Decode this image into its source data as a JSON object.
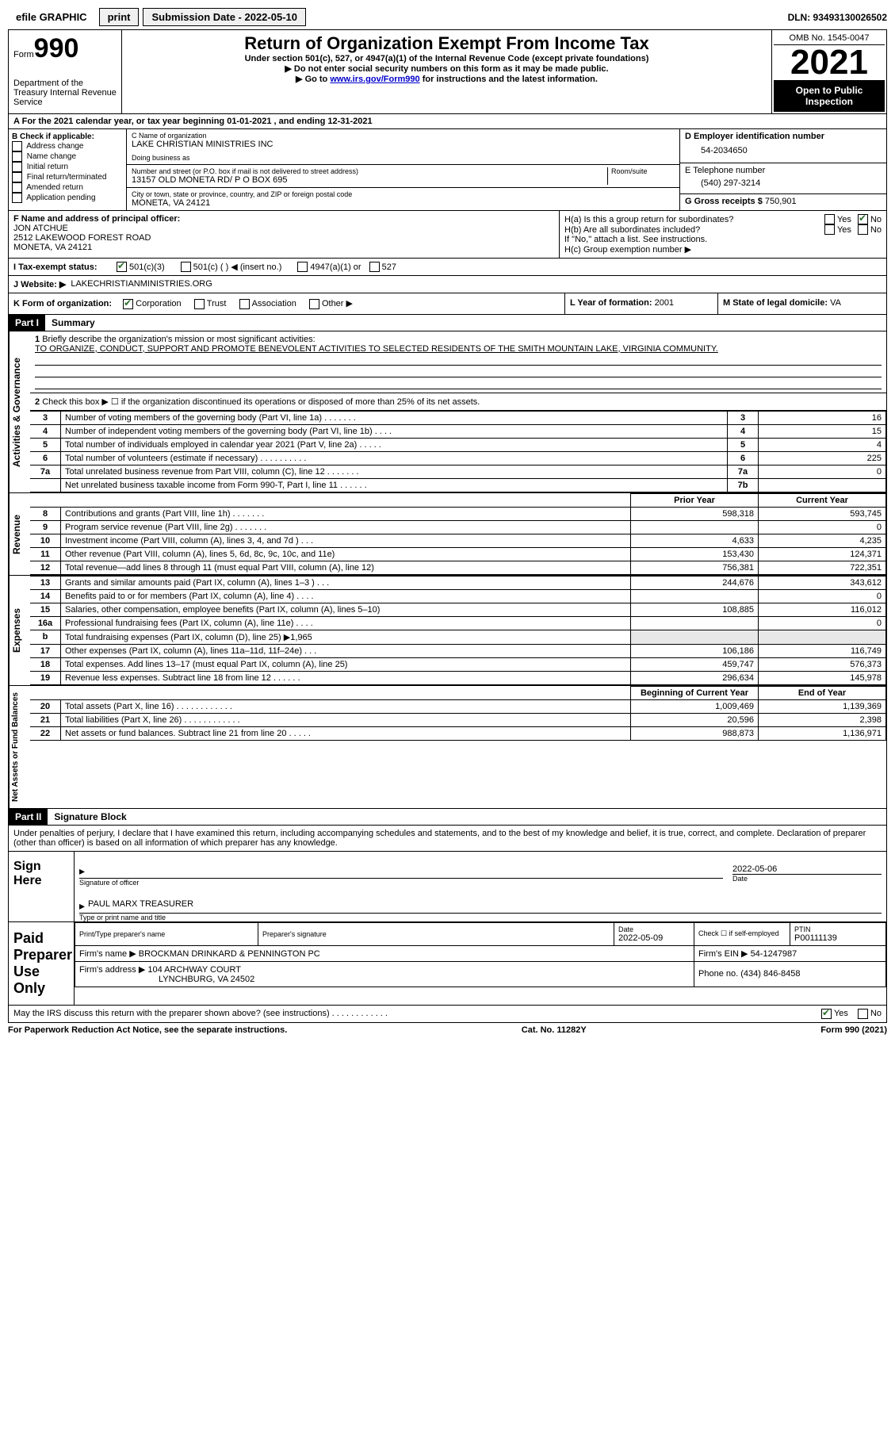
{
  "topbar": {
    "efile_label": "efile GRAPHIC",
    "print_label": "print",
    "submission_label": "Submission Date - 2022-05-10",
    "dln": "DLN: 93493130026502"
  },
  "header": {
    "form_word": "Form",
    "form_num": "990",
    "dept": "Department of the Treasury\nInternal Revenue Service",
    "title": "Return of Organization Exempt From Income Tax",
    "sub1": "Under section 501(c), 527, or 4947(a)(1) of the Internal Revenue Code (except private foundations)",
    "sub2": "▶ Do not enter social security numbers on this form as it may be made public.",
    "sub3_pre": "▶ Go to ",
    "sub3_link": "www.irs.gov/Form990",
    "sub3_post": " for instructions and the latest information.",
    "omb": "OMB No. 1545-0047",
    "year": "2021",
    "open": "Open to Public Inspection"
  },
  "lineA": "For the 2021 calendar year, or tax year beginning 01-01-2021   , and ending 12-31-2021",
  "boxB": {
    "label": "B Check if applicable:",
    "opts": [
      "Address change",
      "Name change",
      "Initial return",
      "Final return/terminated",
      "Amended return",
      "Application pending"
    ]
  },
  "boxC": {
    "name_label": "C Name of organization",
    "name": "LAKE CHRISTIAN MINISTRIES INC",
    "dba_label": "Doing business as",
    "dba": "",
    "street_label": "Number and street (or P.O. box if mail is not delivered to street address)",
    "room_label": "Room/suite",
    "street": "13157 OLD MONETA RD/ P O BOX 695",
    "city_label": "City or town, state or province, country, and ZIP or foreign postal code",
    "city": "MONETA, VA  24121"
  },
  "boxD": {
    "ein_label": "D Employer identification number",
    "ein": "54-2034650",
    "phone_label": "E Telephone number",
    "phone": "(540) 297-3214",
    "gross_label": "G Gross receipts $",
    "gross": "750,901"
  },
  "boxF": {
    "label": "F  Name and address of principal officer:",
    "name": "JON ATCHUE",
    "addr1": "2512 LAKEWOOD FOREST ROAD",
    "addr2": "MONETA, VA  24121"
  },
  "boxH": {
    "ha": "H(a)  Is this a group return for subordinates?",
    "hb": "H(b)  Are all subordinates included?",
    "hb_note": "If \"No,\" attach a list. See instructions.",
    "hc": "H(c)  Group exemption number ▶",
    "yes": "Yes",
    "no": "No"
  },
  "lineI": {
    "label": "I   Tax-exempt status:",
    "opts": [
      "501(c)(3)",
      "501(c) (  ) ◀ (insert no.)",
      "4947(a)(1) or",
      "527"
    ]
  },
  "lineJ": {
    "label": "J   Website: ▶",
    "val": "LAKECHRISTIANMINISTRIES.ORG"
  },
  "lineK": {
    "label": "K Form of organization:",
    "opts": [
      "Corporation",
      "Trust",
      "Association",
      "Other ▶"
    ]
  },
  "lineL": {
    "label": "L Year of formation:",
    "val": "2001"
  },
  "lineM": {
    "label": "M State of legal domicile:",
    "val": "VA"
  },
  "part1": {
    "header": "Part I",
    "title": "Summary",
    "l1": "Briefly describe the organization's mission or most significant activities:",
    "mission": "TO ORGANIZE, CONDUCT, SUPPORT AND PROMOTE BENEVOLENT ACTIVITIES TO SELECTED RESIDENTS OF THE SMITH MOUNTAIN LAKE, VIRGINIA COMMUNITY.",
    "l2": "Check this box ▶ ☐  if the organization discontinued its operations or disposed of more than 25% of its net assets.",
    "rows_top": [
      {
        "n": "3",
        "d": "Number of voting members of the governing body (Part VI, line 1a)   .    .    .    .    .    .    .",
        "b": "3",
        "v": "16"
      },
      {
        "n": "4",
        "d": "Number of independent voting members of the governing body (Part VI, line 1b)   .    .    .    .",
        "b": "4",
        "v": "15"
      },
      {
        "n": "5",
        "d": "Total number of individuals employed in calendar year 2021 (Part V, line 2a)   .    .    .    .    .",
        "b": "5",
        "v": "4"
      },
      {
        "n": "6",
        "d": "Total number of volunteers (estimate if necessary)    .    .    .    .    .    .    .    .    .    .",
        "b": "6",
        "v": "225"
      },
      {
        "n": "7a",
        "d": "Total unrelated business revenue from Part VIII, column (C), line 12   .    .    .    .    .    .    .",
        "b": "7a",
        "v": "0"
      },
      {
        "n": "",
        "d": "Net unrelated business taxable income from Form 990-T, Part I, line 11  .    .    .    .    .    .",
        "b": "7b",
        "v": ""
      }
    ],
    "col_prior": "Prior Year",
    "col_current": "Current Year",
    "rows_rev": [
      {
        "n": "8",
        "d": "Contributions and grants (Part VIII, line 1h)    .    .    .    .    .    .    .",
        "p": "598,318",
        "c": "593,745"
      },
      {
        "n": "9",
        "d": "Program service revenue (Part VIII, line 2g)    .    .    .    .    .    .    .",
        "p": "",
        "c": "0"
      },
      {
        "n": "10",
        "d": "Investment income (Part VIII, column (A), lines 3, 4, and 7d )   .    .    .",
        "p": "4,633",
        "c": "4,235"
      },
      {
        "n": "11",
        "d": "Other revenue (Part VIII, column (A), lines 5, 6d, 8c, 9c, 10c, and 11e)",
        "p": "153,430",
        "c": "124,371"
      },
      {
        "n": "12",
        "d": "Total revenue—add lines 8 through 11 (must equal Part VIII, column (A), line 12)",
        "p": "756,381",
        "c": "722,351"
      }
    ],
    "rows_exp": [
      {
        "n": "13",
        "d": "Grants and similar amounts paid (Part IX, column (A), lines 1–3 )    .    .    .",
        "p": "244,676",
        "c": "343,612"
      },
      {
        "n": "14",
        "d": "Benefits paid to or for members (Part IX, column (A), line 4)    .    .    .    .",
        "p": "",
        "c": "0"
      },
      {
        "n": "15",
        "d": "Salaries, other compensation, employee benefits (Part IX, column (A), lines 5–10)",
        "p": "108,885",
        "c": "116,012"
      },
      {
        "n": "16a",
        "d": "Professional fundraising fees (Part IX, column (A), line 11e)    .    .    .    .",
        "p": "",
        "c": "0"
      },
      {
        "n": "b",
        "d": "Total fundraising expenses (Part IX, column (D), line 25) ▶1,965",
        "p": "SHADE",
        "c": "SHADE"
      },
      {
        "n": "17",
        "d": "Other expenses (Part IX, column (A), lines 11a–11d, 11f–24e)    .    .    .",
        "p": "106,186",
        "c": "116,749"
      },
      {
        "n": "18",
        "d": "Total expenses. Add lines 13–17 (must equal Part IX, column (A), line 25)",
        "p": "459,747",
        "c": "576,373"
      },
      {
        "n": "19",
        "d": "Revenue less expenses. Subtract line 18 from line 12   .    .    .    .    .    .",
        "p": "296,634",
        "c": "145,978"
      }
    ],
    "col_begin": "Beginning of Current Year",
    "col_end": "End of Year",
    "rows_net": [
      {
        "n": "20",
        "d": "Total assets (Part X, line 16)   .    .    .    .    .    .    .    .    .    .    .    .",
        "p": "1,009,469",
        "c": "1,139,369"
      },
      {
        "n": "21",
        "d": "Total liabilities (Part X, line 26)   .    .    .    .    .    .    .    .    .    .    .    .",
        "p": "20,596",
        "c": "2,398"
      },
      {
        "n": "22",
        "d": "Net assets or fund balances. Subtract line 21 from line 20  .    .    .    .    .",
        "p": "988,873",
        "c": "1,136,971"
      }
    ],
    "side_gov": "Activities & Governance",
    "side_rev": "Revenue",
    "side_exp": "Expenses",
    "side_net": "Net Assets or Fund Balances"
  },
  "part2": {
    "header": "Part II",
    "title": "Signature Block",
    "decl": "Under penalties of perjury, I declare that I have examined this return, including accompanying schedules and statements, and to the best of my knowledge and belief, it is true, correct, and complete. Declaration of preparer (other than officer) is based on all information of which preparer has any knowledge.",
    "sign_here": "Sign Here",
    "sig_officer": "Signature of officer",
    "sig_date": "2022-05-06",
    "date_label": "Date",
    "name_title": "PAUL MARX  TREASURER",
    "name_title_label": "Type or print name and title",
    "paid": "Paid Preparer Use Only",
    "prep_name_label": "Print/Type preparer's name",
    "prep_sig_label": "Preparer's signature",
    "prep_date_label": "Date",
    "prep_date": "2022-05-09",
    "prep_check": "Check ☐ if self-employed",
    "ptin_label": "PTIN",
    "ptin": "P00111139",
    "firm_name_label": "Firm's name    ▶",
    "firm_name": "BROCKMAN DRINKARD & PENNINGTON PC",
    "firm_ein_label": "Firm's EIN ▶",
    "firm_ein": "54-1247987",
    "firm_addr_label": "Firm's address ▶",
    "firm_addr1": "104 ARCHWAY COURT",
    "firm_addr2": "LYNCHBURG, VA  24502",
    "firm_phone_label": "Phone no.",
    "firm_phone": "(434) 846-8458",
    "discuss": "May the IRS discuss this return with the preparer shown above? (see instructions)    .    .    .    .    .    .    .    .    .    .    .    .",
    "yes": "Yes",
    "no": "No"
  },
  "footer": {
    "left": "For Paperwork Reduction Act Notice, see the separate instructions.",
    "mid": "Cat. No. 11282Y",
    "right": "Form 990 (2021)"
  }
}
